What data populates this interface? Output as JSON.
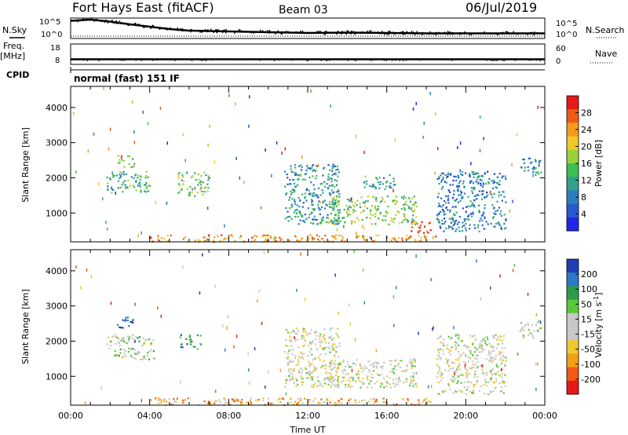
{
  "header": {
    "station": "Fort Hays East (fitACF)",
    "beam": "Beam 03",
    "date": "06/Jul/2019"
  },
  "left_labels": {
    "nsky": "N.Sky",
    "freq": "Freq.",
    "freq_unit": "[MHz]",
    "cpid": "CPID"
  },
  "right_labels": {
    "nsearch": "N.Search",
    "nave": "Nave"
  },
  "mode": "normal (fast) 151 IF",
  "chart_data": [
    {
      "type": "line",
      "name": "noise",
      "yticks_left": [
        "10^5",
        "10^0"
      ],
      "yticks_right": [
        "10^5",
        "10^0"
      ],
      "series": [
        {
          "name": "N.Sky",
          "x": [
            0,
            1,
            2,
            3,
            4,
            5,
            6,
            8,
            10,
            12,
            14,
            16,
            18,
            20,
            22,
            24
          ],
          "values": [
            4.5,
            4.8,
            4.3,
            3.6,
            3.0,
            2.4,
            2.0,
            1.8,
            1.6,
            1.4,
            1.5,
            1.4,
            1.3,
            1.3,
            1.3,
            1.3
          ]
        }
      ]
    },
    {
      "type": "line",
      "name": "freq-nave",
      "yticks_left": [
        "18",
        "8"
      ],
      "yticks_right": [
        "60",
        "0"
      ],
      "series": [
        {
          "name": "Freq",
          "x": [
            0,
            24
          ],
          "values": [
            10.5,
            10.5
          ]
        }
      ]
    },
    {
      "type": "heatmap",
      "name": "power",
      "xlabel": "",
      "ylabel": "Slant Range [km]",
      "yticks": [
        "1000",
        "2000",
        "3000",
        "4000"
      ],
      "ylim": [
        180,
        4600
      ],
      "xlim": [
        0,
        24
      ],
      "colorbar": {
        "label": "Power [dB]",
        "ticks": [
          "28",
          "24",
          "20",
          "16",
          "12",
          "8",
          "4"
        ],
        "colors": [
          "#e61919",
          "#f05a14",
          "#f59b1e",
          "#f0c828",
          "#9bd23c",
          "#3cbe50",
          "#32a08c",
          "#2d7dbe",
          "#285ad2",
          "#1e28e6"
        ]
      },
      "regions": [
        {
          "t0": 3.9,
          "t1": 18.5,
          "r0": 200,
          "r1": 400,
          "level": 0.75
        },
        {
          "t0": 17.2,
          "t1": 18.2,
          "r0": 450,
          "r1": 800,
          "level": 0.95
        },
        {
          "t0": 2.3,
          "t1": 3.2,
          "r0": 2300,
          "r1": 2650,
          "level": 0.55
        },
        {
          "t0": 1.8,
          "t1": 4.0,
          "r0": 1600,
          "r1": 2200,
          "level": 0.4
        },
        {
          "t0": 5.4,
          "t1": 7.0,
          "r0": 1500,
          "r1": 2200,
          "level": 0.45
        },
        {
          "t0": 13.0,
          "t1": 17.5,
          "r0": 700,
          "r1": 1500,
          "level": 0.5
        },
        {
          "t0": 10.8,
          "t1": 13.6,
          "r0": 700,
          "r1": 2400,
          "level": 0.3
        },
        {
          "t0": 18.5,
          "t1": 22.0,
          "r0": 500,
          "r1": 2200,
          "level": 0.25
        },
        {
          "t0": 22.7,
          "t1": 23.8,
          "r0": 2100,
          "r1": 2600,
          "level": 0.3
        },
        {
          "t0": 14.8,
          "t1": 16.4,
          "r0": 1700,
          "r1": 2100,
          "level": 0.35
        }
      ]
    },
    {
      "type": "heatmap",
      "name": "velocity",
      "xlabel": "Time UT",
      "ylabel": "Slant Range [km]",
      "xticks": [
        "00:00",
        "04:00",
        "08:00",
        "12:00",
        "16:00",
        "20:00",
        "00:00"
      ],
      "yticks": [
        "1000",
        "2000",
        "3000",
        "4000"
      ],
      "ylim": [
        180,
        4600
      ],
      "xlim": [
        0,
        24
      ],
      "colorbar": {
        "label": "Velocity [m s-1]",
        "ticks": [
          "200",
          "100",
          "50",
          "15",
          "-15",
          "-50",
          "-100",
          "-200"
        ],
        "colors": [
          "#1e3cb4",
          "#2d78c8",
          "#2d9b4b",
          "#5ac83c",
          "#c8c8c8",
          "#c8c8c8",
          "#f0c832",
          "#f0a014",
          "#f05a14",
          "#e61919"
        ]
      },
      "regions": [
        {
          "t0": 3.9,
          "t1": 18.5,
          "r0": 200,
          "r1": 400,
          "level": 0.3
        },
        {
          "t0": 2.3,
          "t1": 3.2,
          "r0": 2400,
          "r1": 2700,
          "level": 0.95
        },
        {
          "t0": 1.8,
          "t1": 4.2,
          "r0": 1500,
          "r1": 2200,
          "level": 0.55
        },
        {
          "t0": 5.5,
          "t1": 6.6,
          "r0": 1800,
          "r1": 2200,
          "level": 0.75
        },
        {
          "t0": 13.0,
          "t1": 17.5,
          "r0": 700,
          "r1": 1500,
          "level": 0.5
        },
        {
          "t0": 10.8,
          "t1": 13.6,
          "r0": 700,
          "r1": 2400,
          "level": 0.48
        },
        {
          "t0": 18.5,
          "t1": 22.0,
          "r0": 500,
          "r1": 2200,
          "level": 0.5
        },
        {
          "t0": 22.7,
          "t1": 23.8,
          "r0": 2100,
          "r1": 2600,
          "level": 0.5
        }
      ]
    }
  ]
}
